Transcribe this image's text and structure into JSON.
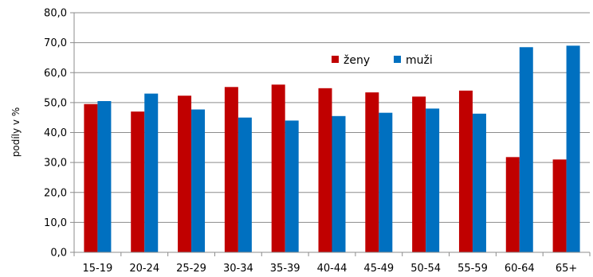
{
  "chart_data": {
    "type": "bar",
    "ylabel": "podíly v %",
    "ylim": [
      0,
      80
    ],
    "ytick_step": 10,
    "ytick_labels": [
      "0,0",
      "10,0",
      "20,0",
      "30,0",
      "40,0",
      "50,0",
      "60,0",
      "70,0",
      "80,0"
    ],
    "grid": true,
    "legend_position": "top-right",
    "categories": [
      "15-19",
      "20-24",
      "25-29",
      "30-34",
      "35-39",
      "40-44",
      "45-49",
      "50-54",
      "55-59",
      "60-64",
      "65+"
    ],
    "series": [
      {
        "name": "ženy",
        "color": "#c00000",
        "values": [
          49.5,
          47.0,
          52.3,
          55.2,
          56.0,
          54.8,
          53.4,
          52.0,
          54.0,
          31.8,
          31.0
        ]
      },
      {
        "name": "muži",
        "color": "#0070c0",
        "values": [
          50.5,
          53.0,
          47.7,
          45.0,
          44.0,
          45.5,
          46.6,
          48.0,
          46.3,
          68.5,
          69.0
        ]
      }
    ]
  }
}
